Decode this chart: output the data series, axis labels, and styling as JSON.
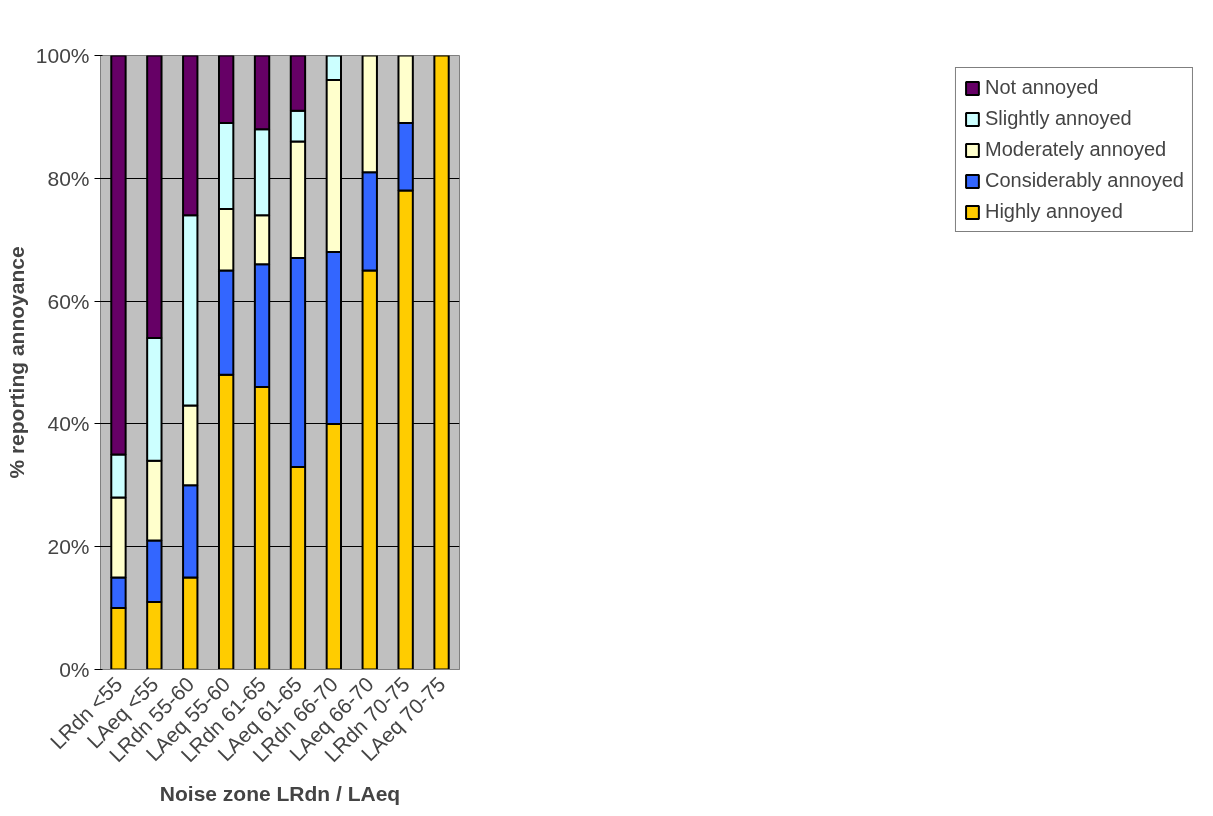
{
  "chart_data": {
    "type": "bar",
    "stacked": true,
    "xlabel": "Noise zone LRdn / LAeq",
    "ylabel": "% reporting annoyance",
    "categories": [
      "LRdn <55",
      "LAeq <55",
      "LRdn 55-60",
      "LAeq 55-60",
      "LRdn 61-65",
      "LAeq 61-65",
      "LRdn 66-70",
      "LAeq 66-70",
      "LRdn 70-75",
      "LAeq 70-75"
    ],
    "series": [
      {
        "name": "Highly annoyed",
        "color": "#ffcc00",
        "values": [
          10,
          11,
          15,
          48,
          46,
          33,
          40,
          65,
          78,
          100
        ]
      },
      {
        "name": "Considerably annoyed",
        "color": "#3366ff",
        "values": [
          5,
          10,
          15,
          17,
          20,
          34,
          28,
          16,
          11,
          0
        ]
      },
      {
        "name": "Moderately annoyed",
        "color": "#ffffcc",
        "values": [
          13,
          13,
          13,
          10,
          8,
          19,
          28,
          19,
          11,
          0
        ]
      },
      {
        "name": "Slightly annoyed",
        "color": "#ccffff",
        "values": [
          7,
          20,
          31,
          14,
          14,
          5,
          4,
          0,
          0,
          0
        ]
      },
      {
        "name": "Not annoyed",
        "color": "#660066",
        "values": [
          65,
          46,
          26,
          11,
          12,
          9,
          0,
          0,
          0,
          0
        ]
      }
    ],
    "ylim": [
      0,
      100
    ],
    "yticks": [
      {
        "value": 0,
        "label": "0%"
      },
      {
        "value": 20,
        "label": "20%"
      },
      {
        "value": 40,
        "label": "40%"
      },
      {
        "value": 60,
        "label": "60%"
      },
      {
        "value": 80,
        "label": "80%"
      },
      {
        "value": 100,
        "label": "100%"
      }
    ],
    "grid": "y",
    "legend": "right"
  }
}
